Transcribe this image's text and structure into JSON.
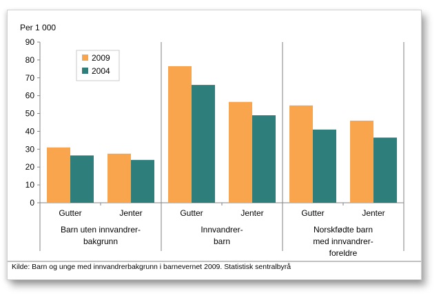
{
  "chart_data": {
    "type": "bar",
    "unit_label": "Per 1 000",
    "ylim": [
      0,
      90
    ],
    "yticks": [
      0,
      10,
      20,
      30,
      40,
      50,
      60,
      70,
      80,
      90
    ],
    "legend_position": "top-left",
    "groups": [
      {
        "label_lines": [
          "Barn uten innvandrer-",
          "bakgrunn"
        ],
        "categories": [
          "Gutter",
          "Jenter"
        ]
      },
      {
        "label_lines": [
          "Innvandrer-",
          "barn"
        ],
        "categories": [
          "Gutter",
          "Jenter"
        ]
      },
      {
        "label_lines": [
          "Norskfødte barn",
          "med innvandrer-",
          "foreldre"
        ],
        "categories": [
          "Gutter",
          "Jenter"
        ]
      }
    ],
    "series": [
      {
        "name": "2009",
        "color": "#f9a54e",
        "values": [
          31,
          27.5,
          76.5,
          56.5,
          54.5,
          46
        ]
      },
      {
        "name": "2004",
        "color": "#2e7f7b",
        "values": [
          26.5,
          24,
          66,
          49,
          41,
          36.5
        ]
      }
    ],
    "grid": false
  },
  "source": "Kilde: Barn og unge med innvandrerbakgrunn i barnevernet 2009. Statistisk sentralbyrå"
}
